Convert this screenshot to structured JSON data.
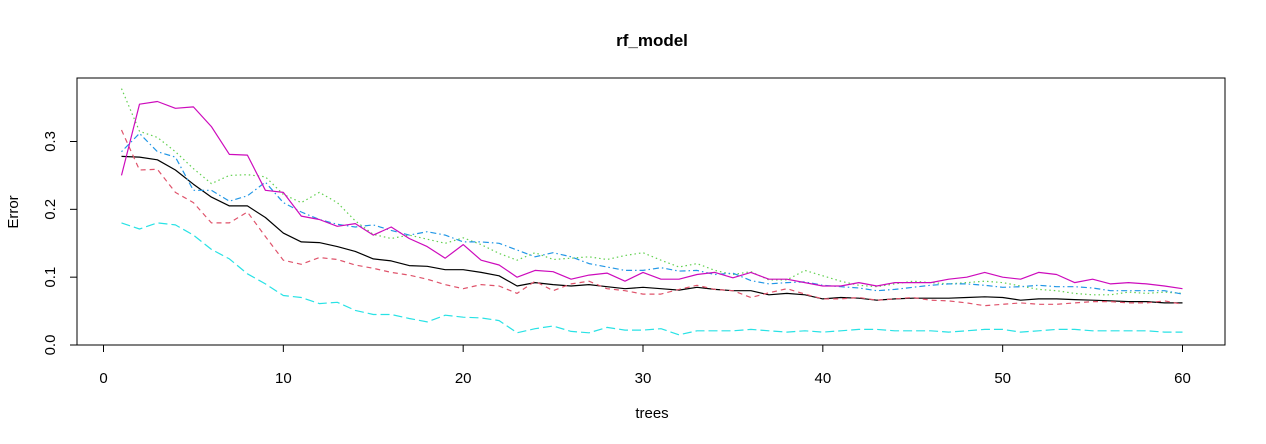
{
  "chart_data": {
    "type": "line",
    "title": "rf_model",
    "xlabel": "trees",
    "ylabel": "Error",
    "xlim": [
      1,
      60
    ],
    "ylim": [
      0,
      0.38
    ],
    "x_ticks": [
      0,
      10,
      20,
      30,
      40,
      50,
      60
    ],
    "x_tick_labels": [
      "0",
      "10",
      "20",
      "30",
      "40",
      "50",
      "60"
    ],
    "y_ticks": [
      0,
      0.1,
      0.2,
      0.3
    ],
    "y_tick_labels": [
      "0.0",
      "0.1",
      "0.2",
      "0.3"
    ],
    "grid": false,
    "legend": "none",
    "series": [
      {
        "color": "#000000",
        "dash": "solid",
        "values": [
          0.278,
          0.277,
          0.273,
          0.258,
          0.237,
          0.218,
          0.205,
          0.205,
          0.188,
          0.165,
          0.152,
          0.151,
          0.145,
          0.138,
          0.127,
          0.124,
          0.117,
          0.116,
          0.111,
          0.111,
          0.107,
          0.102,
          0.087,
          0.092,
          0.089,
          0.087,
          0.089,
          0.086,
          0.083,
          0.085,
          0.083,
          0.081,
          0.085,
          0.082,
          0.08,
          0.08,
          0.074,
          0.076,
          0.074,
          0.068,
          0.07,
          0.069,
          0.066,
          0.068,
          0.069,
          0.069,
          0.069,
          0.07,
          0.071,
          0.07,
          0.066,
          0.068,
          0.068,
          0.067,
          0.066,
          0.065,
          0.064,
          0.064,
          0.062,
          0.062
        ]
      },
      {
        "color": "#DF536B",
        "dash": "dashed",
        "values": [
          0.317,
          0.258,
          0.259,
          0.225,
          0.21,
          0.18,
          0.18,
          0.196,
          0.16,
          0.125,
          0.119,
          0.129,
          0.126,
          0.118,
          0.113,
          0.107,
          0.103,
          0.097,
          0.089,
          0.083,
          0.089,
          0.087,
          0.076,
          0.094,
          0.08,
          0.09,
          0.094,
          0.083,
          0.08,
          0.075,
          0.075,
          0.082,
          0.088,
          0.082,
          0.08,
          0.07,
          0.077,
          0.083,
          0.075,
          0.068,
          0.068,
          0.07,
          0.066,
          0.068,
          0.07,
          0.066,
          0.065,
          0.062,
          0.058,
          0.06,
          0.062,
          0.06,
          0.06,
          0.062,
          0.064,
          0.064,
          0.062,
          0.062,
          0.065,
          0.06
        ]
      },
      {
        "color": "#61D04F",
        "dash": "dotted",
        "values": [
          0.378,
          0.315,
          0.306,
          0.285,
          0.26,
          0.238,
          0.25,
          0.251,
          0.248,
          0.222,
          0.21,
          0.225,
          0.21,
          0.183,
          0.163,
          0.157,
          0.162,
          0.156,
          0.15,
          0.158,
          0.148,
          0.135,
          0.125,
          0.136,
          0.126,
          0.128,
          0.13,
          0.126,
          0.132,
          0.136,
          0.125,
          0.115,
          0.12,
          0.11,
          0.104,
          0.108,
          0.096,
          0.096,
          0.11,
          0.102,
          0.094,
          0.088,
          0.086,
          0.09,
          0.094,
          0.092,
          0.09,
          0.092,
          0.094,
          0.092,
          0.087,
          0.082,
          0.08,
          0.076,
          0.074,
          0.074,
          0.078,
          0.076,
          0.078,
          0.076
        ]
      },
      {
        "color": "#2297E6",
        "dash": "dotdash",
        "values": [
          0.285,
          0.312,
          0.285,
          0.277,
          0.228,
          0.228,
          0.212,
          0.22,
          0.24,
          0.21,
          0.196,
          0.185,
          0.178,
          0.174,
          0.177,
          0.169,
          0.162,
          0.167,
          0.162,
          0.152,
          0.152,
          0.15,
          0.14,
          0.13,
          0.136,
          0.13,
          0.12,
          0.115,
          0.11,
          0.11,
          0.114,
          0.109,
          0.11,
          0.104,
          0.106,
          0.095,
          0.09,
          0.092,
          0.093,
          0.088,
          0.086,
          0.084,
          0.08,
          0.082,
          0.085,
          0.088,
          0.09,
          0.09,
          0.088,
          0.085,
          0.086,
          0.088,
          0.086,
          0.086,
          0.084,
          0.08,
          0.08,
          0.08,
          0.08,
          0.075
        ]
      },
      {
        "color": "#28E2E5",
        "dash": "longdash",
        "values": [
          0.18,
          0.171,
          0.18,
          0.177,
          0.162,
          0.141,
          0.127,
          0.105,
          0.09,
          0.073,
          0.07,
          0.061,
          0.063,
          0.051,
          0.045,
          0.045,
          0.039,
          0.034,
          0.044,
          0.041,
          0.04,
          0.036,
          0.018,
          0.024,
          0.028,
          0.02,
          0.018,
          0.026,
          0.022,
          0.022,
          0.024,
          0.015,
          0.021,
          0.021,
          0.021,
          0.023,
          0.021,
          0.019,
          0.021,
          0.019,
          0.021,
          0.023,
          0.023,
          0.021,
          0.021,
          0.021,
          0.019,
          0.021,
          0.023,
          0.023,
          0.019,
          0.021,
          0.023,
          0.023,
          0.021,
          0.021,
          0.021,
          0.021,
          0.019,
          0.019
        ]
      },
      {
        "color": "#CD0BBC",
        "dash": "solid",
        "values": [
          0.25,
          0.355,
          0.359,
          0.349,
          0.351,
          0.322,
          0.281,
          0.28,
          0.228,
          0.225,
          0.19,
          0.185,
          0.175,
          0.179,
          0.162,
          0.174,
          0.157,
          0.145,
          0.128,
          0.148,
          0.125,
          0.118,
          0.1,
          0.11,
          0.108,
          0.097,
          0.103,
          0.106,
          0.094,
          0.107,
          0.097,
          0.097,
          0.104,
          0.107,
          0.099,
          0.107,
          0.097,
          0.097,
          0.092,
          0.087,
          0.087,
          0.092,
          0.087,
          0.092,
          0.092,
          0.092,
          0.097,
          0.1,
          0.107,
          0.1,
          0.097,
          0.107,
          0.104,
          0.092,
          0.097,
          0.09,
          0.092,
          0.09,
          0.087,
          0.083
        ]
      }
    ]
  }
}
